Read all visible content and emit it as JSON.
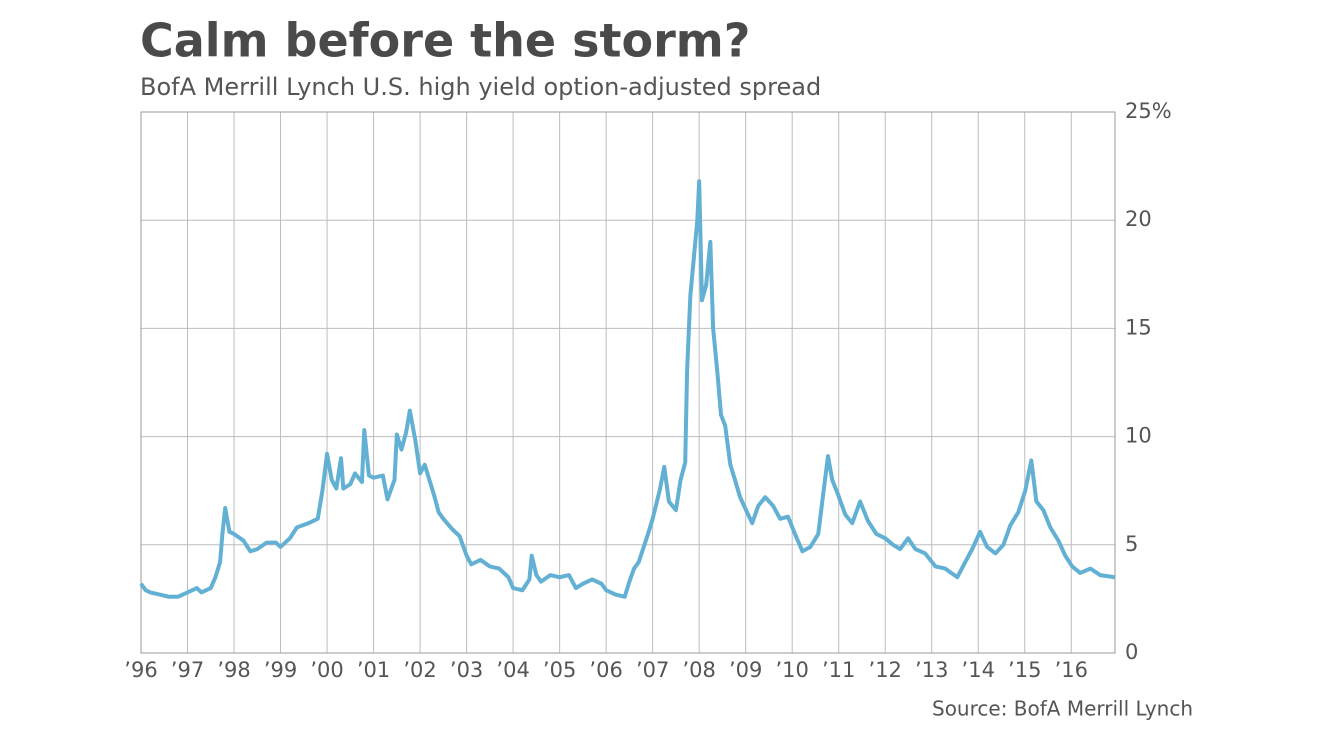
{
  "chart_data": {
    "type": "line",
    "title": "Calm before the storm?",
    "subtitle": "BofA Merrill Lynch U.S. high yield option-adjusted spread",
    "source": "Source: BofA Merrill Lynch",
    "x": [
      1996.0,
      1996.1,
      1996.2,
      1996.4,
      1996.6,
      1996.8,
      1997.0,
      1997.2,
      1997.3,
      1997.5,
      1997.6,
      1997.7,
      1997.75,
      1997.81,
      1997.9,
      1998.0,
      1998.2,
      1998.35,
      1998.5,
      1998.7,
      1998.9,
      1999.0,
      1999.2,
      1999.35,
      1999.6,
      1999.8,
      1999.9,
      2000.0,
      2000.1,
      2000.2,
      2000.3,
      2000.35,
      2000.5,
      2000.6,
      2000.75,
      2000.8,
      2000.9,
      2001.0,
      2001.2,
      2001.3,
      2001.45,
      2001.5,
      2001.6,
      2001.7,
      2001.78,
      2001.9,
      2002.0,
      2002.1,
      2002.3,
      2002.4,
      2002.5,
      2002.7,
      2002.85,
      2003.0,
      2003.1,
      2003.3,
      2003.5,
      2003.7,
      2003.9,
      2004.0,
      2004.2,
      2004.35,
      2004.4,
      2004.5,
      2004.6,
      2004.8,
      2005.0,
      2005.2,
      2005.35,
      2005.5,
      2005.7,
      2005.9,
      2006.0,
      2006.2,
      2006.4,
      2006.5,
      2006.6,
      2006.7,
      2006.9,
      2007.0,
      2007.15,
      2007.25,
      2007.35,
      2007.5,
      2007.6,
      2007.7,
      2007.74,
      2007.81,
      2007.96,
      2008.0,
      2008.06,
      2008.15,
      2008.24,
      2008.3,
      2008.39,
      2008.47,
      2008.56,
      2008.67,
      2008.77,
      2008.88,
      2009.03,
      2009.14,
      2009.27,
      2009.42,
      2009.59,
      2009.74,
      2009.91,
      2010.06,
      2010.22,
      2010.39,
      2010.56,
      2010.67,
      2010.77,
      2010.86,
      2010.99,
      2011.14,
      2011.29,
      2011.46,
      2011.63,
      2011.81,
      2012.0,
      2012.17,
      2012.32,
      2012.49,
      2012.65,
      2012.86,
      2013.08,
      2013.29,
      2013.55,
      2013.72,
      2013.87,
      2014.04,
      2014.19,
      2014.37,
      2014.54,
      2014.69,
      2014.86,
      2015.01,
      2015.14,
      2015.25,
      2015.4,
      2015.55,
      2015.72,
      2015.87,
      2016.02,
      2016.19,
      2016.41,
      2016.62,
      2016.94
    ],
    "series": [
      {
        "name": "High yield OAS",
        "color": "#62b0d3",
        "values": [
          3.2,
          2.9,
          2.8,
          2.7,
          2.6,
          2.6,
          2.8,
          3.0,
          2.8,
          3.0,
          3.5,
          4.2,
          5.5,
          6.7,
          5.6,
          5.5,
          5.2,
          4.7,
          4.8,
          5.1,
          5.1,
          4.9,
          5.3,
          5.8,
          6.0,
          6.2,
          7.5,
          9.2,
          8.0,
          7.6,
          9.0,
          7.6,
          7.8,
          8.3,
          7.9,
          10.3,
          8.2,
          8.1,
          8.2,
          7.1,
          8.0,
          10.1,
          9.4,
          10.2,
          11.2,
          9.8,
          8.3,
          8.7,
          7.3,
          6.5,
          6.2,
          5.7,
          5.4,
          4.5,
          4.1,
          4.3,
          4.0,
          3.9,
          3.5,
          3.0,
          2.9,
          3.4,
          4.5,
          3.6,
          3.3,
          3.6,
          3.5,
          3.6,
          3.0,
          3.2,
          3.4,
          3.2,
          2.9,
          2.7,
          2.6,
          3.3,
          3.9,
          4.2,
          5.5,
          6.2,
          7.5,
          8.6,
          7.0,
          6.6,
          8.0,
          8.8,
          13.0,
          16.5,
          20.0,
          21.8,
          16.3,
          17.0,
          19.0,
          15.0,
          13.0,
          11.0,
          10.5,
          8.7,
          8.0,
          7.2,
          6.5,
          6.0,
          6.8,
          7.2,
          6.8,
          6.2,
          6.3,
          5.5,
          4.7,
          4.9,
          5.5,
          7.4,
          9.1,
          8.0,
          7.3,
          6.4,
          6.0,
          7.0,
          6.1,
          5.5,
          5.3,
          5.0,
          4.8,
          5.3,
          4.8,
          4.6,
          4.0,
          3.9,
          3.5,
          4.2,
          4.8,
          5.6,
          4.9,
          4.6,
          5.0,
          5.9,
          6.5,
          7.5,
          8.9,
          7.0,
          6.6,
          5.8,
          5.2,
          4.5,
          4.0,
          3.7,
          3.9,
          3.6,
          3.5
        ]
      }
    ],
    "xlim": [
      1996,
      2016.94
    ],
    "xticks": [
      {
        "value": 1996,
        "label": "’96"
      },
      {
        "value": 1997,
        "label": "’97"
      },
      {
        "value": 1998,
        "label": "’98"
      },
      {
        "value": 1999,
        "label": "’99"
      },
      {
        "value": 2000,
        "label": "’00"
      },
      {
        "value": 2001,
        "label": "’01"
      },
      {
        "value": 2002,
        "label": "’02"
      },
      {
        "value": 2003,
        "label": "’03"
      },
      {
        "value": 2004,
        "label": "’04"
      },
      {
        "value": 2005,
        "label": "’05"
      },
      {
        "value": 2006,
        "label": "’06"
      },
      {
        "value": 2007,
        "label": "’07"
      },
      {
        "value": 2008,
        "label": "’08"
      },
      {
        "value": 2009,
        "label": "’09"
      },
      {
        "value": 2010,
        "label": "’10"
      },
      {
        "value": 2011,
        "label": "’11"
      },
      {
        "value": 2012,
        "label": "’12"
      },
      {
        "value": 2013,
        "label": "’13"
      },
      {
        "value": 2014,
        "label": "’14"
      },
      {
        "value": 2015,
        "label": "’15"
      },
      {
        "value": 2016,
        "label": "’16"
      }
    ],
    "ylim": [
      0,
      25
    ],
    "yticks": [
      0,
      5,
      10,
      15,
      20,
      {
        "value": 25,
        "label": "25%"
      }
    ],
    "grid": true
  }
}
